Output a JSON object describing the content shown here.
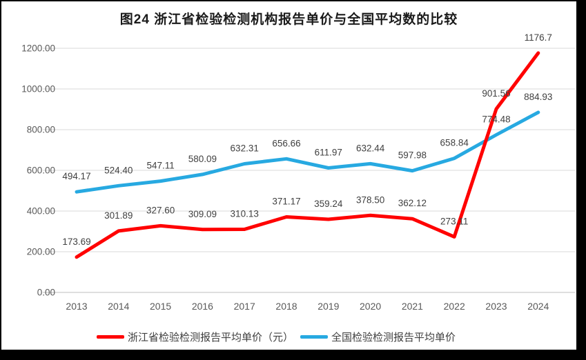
{
  "title": "图24  浙江省检验检测机构报告单价与全国平均数的比较",
  "colors": {
    "frame": "#000000",
    "surface": "#ffffff",
    "gridline": "#d9d9d9",
    "axis_line": "#bfbfbf",
    "tick_text": "#595959",
    "data_label_text": "#404040",
    "zhejiang_line": "#ff0000",
    "national_line": "#27a9e1"
  },
  "chart_data": {
    "type": "line",
    "title": "图24  浙江省检验检测机构报告单价与全国平均数的比较",
    "categories": [
      "2013",
      "2014",
      "2015",
      "2016",
      "2017",
      "2018",
      "2019",
      "2020",
      "2021",
      "2022",
      "2023",
      "2024"
    ],
    "series": [
      {
        "id": "zhejiang",
        "name": "浙江省检验检测报告平均单价（元）",
        "color": "#ff0000",
        "values": [
          173.69,
          301.89,
          327.6,
          309.09,
          310.13,
          371.17,
          359.24,
          378.5,
          362.12,
          273.11,
          901.56,
          1176.7
        ],
        "labels": [
          "173.69",
          "301.89",
          "327.60",
          "309.09",
          "310.13",
          "371.17",
          "359.24",
          "378.50",
          "362.12",
          "273.11",
          "901.56",
          "1176.7"
        ]
      },
      {
        "id": "national",
        "name": "全国检验检测报告平均单价",
        "color": "#27a9e1",
        "values": [
          494.17,
          524.4,
          547.11,
          580.09,
          632.31,
          656.66,
          611.97,
          632.44,
          597.98,
          658.84,
          774.48,
          884.93
        ],
        "labels": [
          "494.17",
          "524.40",
          "547.11",
          "580.09",
          "632.31",
          "656.66",
          "611.97",
          "632.44",
          "597.98",
          "658.84",
          "774.48",
          "884.93"
        ]
      }
    ],
    "ylim": [
      0,
      1200
    ],
    "ytick_step": 200,
    "ytick_labels": [
      "0.00",
      "200.00",
      "400.00",
      "600.00",
      "800.00",
      "1000.00",
      "1200.00"
    ],
    "grid": true,
    "legend_position": "bottom"
  }
}
